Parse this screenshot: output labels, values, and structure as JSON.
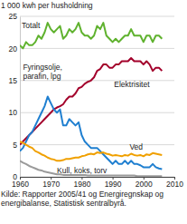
{
  "chart_data": {
    "type": "line",
    "ylabel": "1 000 kwh per husholdning",
    "source": "Kilde: Rapporter 2005/41 og Energiregnskap og energibalanse, Statistisk sentralbyrå.",
    "x": [
      1960,
      1961,
      1962,
      1963,
      1964,
      1965,
      1966,
      1967,
      1968,
      1969,
      1970,
      1971,
      1972,
      1973,
      1974,
      1975,
      1976,
      1977,
      1978,
      1979,
      1980,
      1981,
      1982,
      1983,
      1984,
      1985,
      1986,
      1987,
      1988,
      1989,
      1990,
      1991,
      1992,
      1993,
      1994,
      1995,
      1996,
      1997,
      1998,
      1999,
      2000,
      2001,
      2002,
      2003,
      2004,
      2005,
      2006
    ],
    "series": [
      {
        "name": "Totalt",
        "color": "#5fb22e",
        "values": [
          20.5,
          20,
          21,
          20.5,
          20.5,
          21,
          22,
          21.5,
          22.5,
          24,
          23,
          22.5,
          23,
          23.5,
          21.5,
          22,
          23,
          22.5,
          23,
          24,
          22.5,
          22,
          22,
          21.5,
          22,
          23.5,
          23,
          24,
          22,
          21.5,
          21,
          21.5,
          21,
          21.5,
          22,
          22,
          23,
          22,
          22,
          22,
          21,
          22,
          22,
          21,
          22,
          22,
          21.5
        ]
      },
      {
        "name": "Elektrisitet",
        "color": "#a3002b",
        "values": [
          5,
          5.5,
          6,
          6.5,
          7,
          7.5,
          8,
          8.5,
          9,
          9.5,
          10,
          10.5,
          10.8,
          11,
          11.3,
          12,
          12.5,
          12.5,
          13,
          13.8,
          14,
          14.5,
          14.8,
          15,
          15.5,
          16.5,
          16.8,
          17.5,
          17.5,
          17,
          17,
          17.5,
          17.5,
          18,
          18,
          18,
          18.5,
          18,
          18,
          18,
          17.5,
          18,
          17.5,
          16.5,
          17,
          17,
          16.5
        ]
      },
      {
        "name": "Fyringsolje, parafin, lpg",
        "color": "#1f7fd0",
        "values": [
          4,
          4.5,
          5.5,
          6.5,
          7,
          8,
          9,
          10,
          11,
          12.5,
          11.5,
          10.5,
          10,
          10.5,
          8,
          8,
          9,
          8.5,
          8,
          8.5,
          6.5,
          5.5,
          5,
          4.5,
          4.5,
          4.5,
          4,
          3.5,
          3,
          2.5,
          2,
          2.5,
          2,
          2,
          2.5,
          2,
          2.5,
          2,
          2,
          1.8,
          1.5,
          1.5,
          1.5,
          2,
          1.5,
          1.3,
          1.2
        ]
      },
      {
        "name": "Ved",
        "color": "#f0a000",
        "values": [
          5.5,
          5.3,
          5,
          4.7,
          4.5,
          4,
          3.8,
          3.5,
          3.3,
          3,
          2.8,
          2.7,
          2.5,
          2.5,
          2.6,
          2.8,
          2.8,
          2.9,
          3,
          3,
          3.2,
          3.3,
          3.5,
          3.6,
          3.5,
          3.8,
          3.7,
          3.8,
          3.6,
          3.5,
          3.3,
          3.4,
          3.3,
          3.2,
          3.4,
          3.3,
          3.6,
          3.4,
          3.3,
          3.4,
          3.2,
          3.5,
          3.4,
          3.7,
          3.6,
          3.5,
          3.4
        ]
      },
      {
        "name": "Kull, koks, torv",
        "color": "#9a9a9a",
        "values": [
          2.5,
          2.2,
          2,
          1.7,
          1.5,
          1.3,
          1.1,
          1,
          0.8,
          0.7,
          0.6,
          0.5,
          0.4,
          0.4,
          0.3,
          0.3,
          0.3,
          0.3,
          0.3,
          0.3,
          0.3,
          0.3,
          0.2,
          0.2,
          0.2,
          0.2,
          0.2,
          0.2,
          0.2,
          0.2,
          0.2,
          0.2,
          0.2,
          0.2,
          0.2,
          0.2,
          0.2,
          0.2,
          0.1,
          0.1,
          0.1,
          0.1,
          0.1,
          0.1,
          0.1,
          0.1,
          0.1
        ]
      }
    ],
    "xlim": [
      1960,
      2010
    ],
    "xticks": [
      1960,
      1970,
      1980,
      1990,
      2000,
      2010
    ],
    "ylim": [
      0,
      25
    ],
    "yticks": [
      0,
      5,
      10,
      15,
      20,
      25
    ],
    "grid": true
  }
}
